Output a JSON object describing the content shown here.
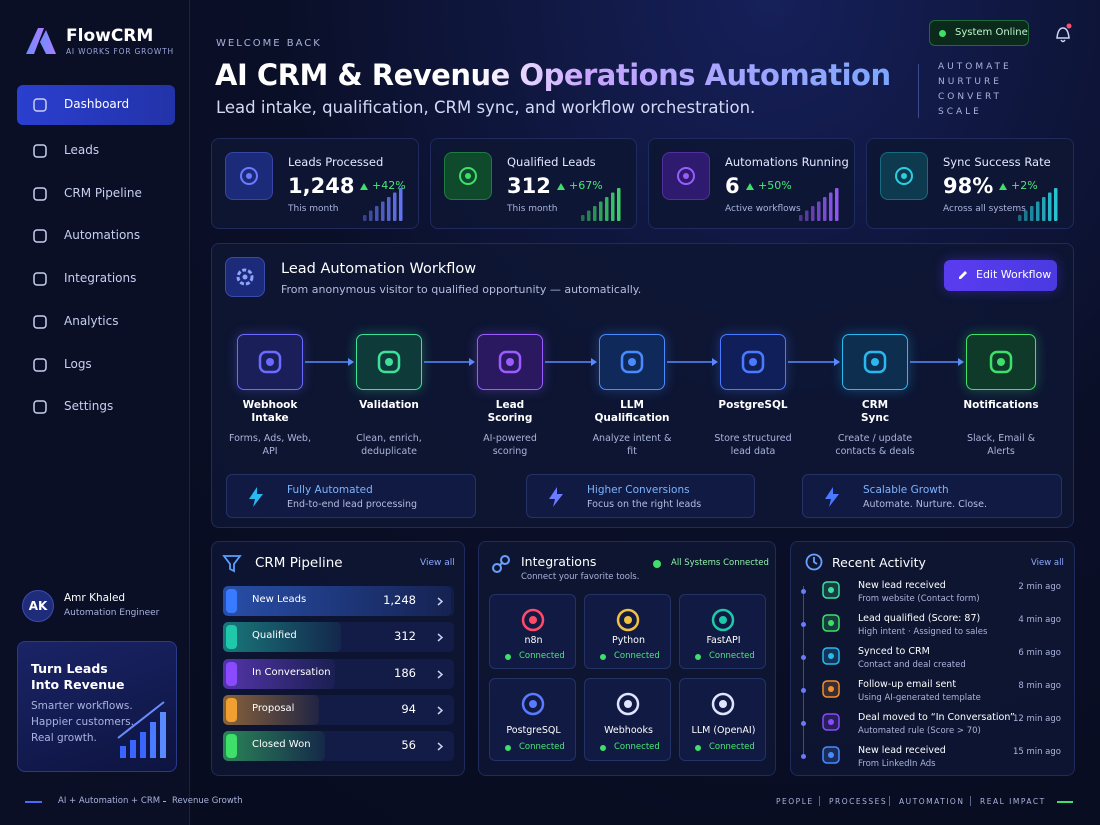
{
  "sidebar": {
    "brand": {
      "name": "FlowCRM",
      "tagline": "AI WORKS FOR GROWTH"
    },
    "nav": [
      "Dashboard",
      "Leads",
      "CRM Pipeline",
      "Automations",
      "Integrations",
      "Analytics",
      "Logs",
      "Settings"
    ],
    "user": {
      "initials": "AK",
      "name": "Amr Khaled",
      "role": "Automation Engineer"
    },
    "promo": {
      "title": [
        "Turn Leads",
        "Into Revenue"
      ],
      "body": [
        "Smarter workflows.",
        "Happier customers.",
        "Real growth."
      ]
    }
  },
  "header": {
    "eyebrow": "WELCOME BACK",
    "title": "AI CRM & Revenue Operations Automation",
    "subtitle": "Lead intake, qualification, CRM sync, and workflow orchestration.",
    "status": "System Online",
    "taglines": [
      "AUTOMATE",
      "NURTURE",
      "CONVERT",
      "SCALE"
    ]
  },
  "stats": [
    {
      "label": "Leads Processed",
      "value": "1,248",
      "change": "+42%",
      "note": "This month"
    },
    {
      "label": "Qualified Leads",
      "value": "312",
      "change": "+67%",
      "note": "This month"
    },
    {
      "label": "Automations Running",
      "value": "6",
      "change": "+50%",
      "note": "Active workflows"
    },
    {
      "label": "Sync Success Rate",
      "value": "98%",
      "change": "+2%",
      "note": "Across all systems"
    }
  ],
  "workflow": {
    "title": "Lead Automation Workflow",
    "subtitle": "From anonymous visitor to qualified opportunity — automatically.",
    "button": "Edit Workflow",
    "steps": [
      {
        "title": "Webhook Intake",
        "desc": "Forms, Ads, Web, API"
      },
      {
        "title": "Validation",
        "desc": "Clean, enrich, deduplicate"
      },
      {
        "title": "Lead Scoring",
        "desc": "AI-powered scoring"
      },
      {
        "title": "LLM Qualification",
        "desc": "Analyze intent & fit"
      },
      {
        "title": "PostgreSQL",
        "desc": "Store structured lead data"
      },
      {
        "title": "CRM Sync",
        "desc": "Create / update contacts & deals"
      },
      {
        "title": "Notifications",
        "desc": "Slack, Email & Alerts"
      }
    ],
    "features": [
      {
        "title": "Fully Automated",
        "desc": "End-to-end lead processing"
      },
      {
        "title": "Higher Conversions",
        "desc": "Focus on the right leads"
      },
      {
        "title": "Scalable Growth",
        "desc": "Automate. Nurture. Close."
      }
    ]
  },
  "pipeline": {
    "title": "CRM Pipeline",
    "link": "View all",
    "stages": [
      {
        "name": "New Leads",
        "count": "1,248"
      },
      {
        "name": "Qualified",
        "count": "312"
      },
      {
        "name": "In Conversation",
        "count": "186"
      },
      {
        "name": "Proposal",
        "count": "94"
      },
      {
        "name": "Closed Won",
        "count": "56"
      }
    ]
  },
  "integrations": {
    "title": "Integrations",
    "subtitle": "Connect your favorite tools.",
    "status": "All Systems Connected",
    "items": [
      {
        "name": "n8n",
        "status": "Connected"
      },
      {
        "name": "Python",
        "status": "Connected"
      },
      {
        "name": "FastAPI",
        "status": "Connected"
      },
      {
        "name": "PostgreSQL",
        "status": "Connected"
      },
      {
        "name": "Webhooks",
        "status": "Connected"
      },
      {
        "name": "LLM (OpenAI)",
        "status": "Connected"
      }
    ]
  },
  "activity": {
    "title": "Recent Activity",
    "link": "View all",
    "items": [
      {
        "title": "New lead received",
        "desc": "From website (Contact form)",
        "time": "2 min ago"
      },
      {
        "title": "Lead qualified (Score: 87)",
        "desc": "High intent · Assigned to sales",
        "time": "4 min ago"
      },
      {
        "title": "Synced to CRM",
        "desc": "Contact and deal created",
        "time": "6 min ago"
      },
      {
        "title": "Follow-up email sent",
        "desc": "Using AI-generated template",
        "time": "8 min ago"
      },
      {
        "title": "Deal moved to “In Conversation”",
        "desc": "Automated rule (Score > 70)",
        "time": "12 min ago"
      },
      {
        "title": "New lead received",
        "desc": "From LinkedIn Ads",
        "time": "15 min ago"
      }
    ]
  },
  "footer": {
    "left": [
      "AI + Automation + CRM",
      "Revenue Growth"
    ],
    "right": [
      "PEOPLE",
      "PROCESSES",
      "AUTOMATION",
      "REAL IMPACT"
    ]
  }
}
